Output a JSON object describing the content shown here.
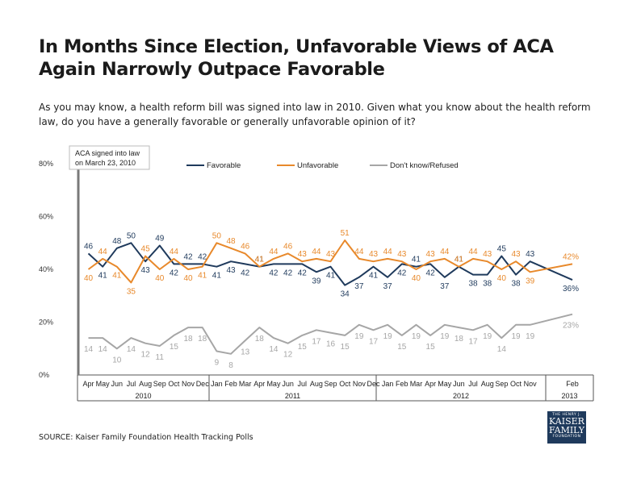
{
  "title": "In Months Since Election, Unfavorable Views of ACA Again Narrowly Outpace Favorable",
  "subtitle": "As you may know, a health reform bill was signed into law in 2010. Given what you know about the health reform law, do you have a generally favorable or generally unfavorable opinion of it?",
  "source": "SOURCE: Kaiser Family Foundation Health Tracking Polls",
  "logo": {
    "line1": "THE HENRY J.",
    "line2": "KAISER",
    "line3": "FAMILY",
    "line4": "FOUNDATION"
  },
  "colors": {
    "favorable": "#1f3a5c",
    "unfavorable": "#e8892b",
    "dontknow": "#a6a6a6"
  },
  "chart_data": {
    "type": "line",
    "ylim": [
      0,
      80
    ],
    "yticks": [
      0,
      20,
      40,
      60,
      80
    ],
    "ytick_labels": [
      "0%",
      "20%",
      "40%",
      "60%",
      "80%"
    ],
    "annotation": [
      "ACA signed into law",
      "on March 23, 2010"
    ],
    "categories": [
      "Apr",
      "May",
      "Jun",
      "Jul",
      "Aug",
      "Sep",
      "Oct",
      "Nov",
      "Dec",
      "Jan",
      "Feb",
      "Mar",
      "Apr",
      "May",
      "Jun",
      "Jul",
      "Aug",
      "Sep",
      "Oct",
      "Nov",
      "Dec",
      "Jan",
      "Feb",
      "Mar",
      "Apr",
      "May",
      "Jun",
      "Jul",
      "Aug",
      "Sep",
      "Oct",
      "Nov",
      "Feb"
    ],
    "year_labels": [
      "2010",
      "2011",
      "2012",
      "2013"
    ],
    "series": [
      {
        "name": "Favorable",
        "values": [
          46,
          41,
          48,
          50,
          43,
          49,
          42,
          42,
          42,
          41,
          43,
          42,
          41,
          42,
          42,
          42,
          39,
          41,
          34,
          37,
          41,
          37,
          42,
          41,
          42,
          37,
          41,
          38,
          38,
          45,
          38,
          43,
          36
        ],
        "labels": [
          "46",
          "41",
          "48",
          "50",
          "43",
          "49",
          "42",
          "42",
          "42",
          "41",
          "43",
          "42",
          "41",
          "42",
          "42",
          "42",
          "39",
          "41",
          "34",
          "37",
          "41",
          "37",
          "42",
          "41",
          "42",
          "37",
          "41",
          "38",
          "38",
          "45",
          "38",
          "43",
          "36%"
        ]
      },
      {
        "name": "Unfavorable",
        "values": [
          40,
          44,
          41,
          35,
          45,
          40,
          44,
          40,
          41,
          50,
          48,
          46,
          41,
          44,
          46,
          43,
          44,
          43,
          51,
          44,
          43,
          44,
          43,
          40,
          43,
          44,
          41,
          44,
          43,
          40,
          43,
          39,
          42
        ],
        "labels": [
          "40",
          "44",
          "41",
          "35",
          "45",
          "40",
          "44",
          "40",
          "41",
          "50",
          "48",
          "46",
          "41",
          "44",
          "46",
          "43",
          "44",
          "43",
          "51",
          "44",
          "43",
          "44",
          "43",
          "40",
          "43",
          "44",
          "41",
          "44",
          "43",
          "40",
          "43",
          "39",
          "42%"
        ]
      },
      {
        "name": "Don't know/Refused",
        "values": [
          14,
          14,
          10,
          14,
          12,
          11,
          15,
          18,
          18,
          9,
          8,
          13,
          18,
          14,
          12,
          15,
          17,
          16,
          15,
          19,
          17,
          19,
          15,
          19,
          15,
          19,
          18,
          17,
          19,
          14,
          19,
          19,
          23
        ],
        "labels": [
          "14",
          "14",
          "10",
          "14",
          "12",
          "11",
          "15",
          "18",
          "18",
          "9",
          "8",
          "13",
          "18",
          "14",
          "12",
          "15",
          "17",
          "16",
          "15",
          "19",
          "17",
          "19",
          "15",
          "19",
          "15",
          "19",
          "18",
          "17",
          "19",
          "14",
          "19",
          "19",
          "23%"
        ]
      }
    ]
  }
}
